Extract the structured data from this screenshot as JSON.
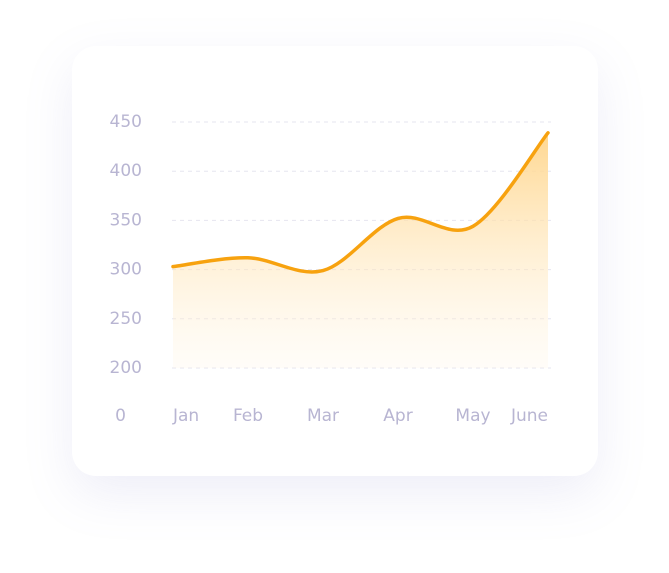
{
  "chart_data": {
    "type": "area",
    "categories": [
      "Jan",
      "Feb",
      "Mar",
      "Apr",
      "May",
      "June"
    ],
    "values": [
      303,
      312,
      299,
      352,
      344,
      439
    ],
    "color": "#f7a20f",
    "ylim": [
      200,
      450
    ],
    "yticks": [
      200,
      250,
      300,
      350,
      400,
      450
    ],
    "origin_label": "0",
    "grid": true
  }
}
